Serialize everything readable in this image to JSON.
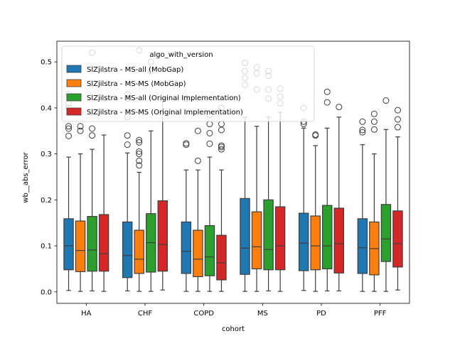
{
  "chart_data": {
    "type": "box",
    "xlabel": "cohort",
    "ylabel": "wb__abs_error",
    "ylim": [
      -0.025,
      0.545
    ],
    "yticks": [
      0.0,
      0.1,
      0.2,
      0.3,
      0.4,
      0.5
    ],
    "ytick_labels": [
      "0.0",
      "0.1",
      "0.2",
      "0.3",
      "0.4",
      "0.5"
    ],
    "categories": [
      "HA",
      "CHF",
      "COPD",
      "MS",
      "PD",
      "PFF"
    ],
    "legend": {
      "title": "algo_with_version",
      "position": "upper-left"
    },
    "grid": false,
    "series": [
      {
        "name": "SlZjilstra - MS-all (MobGap)",
        "color": "#1f77b4",
        "boxes": [
          {
            "whisker_low": 0.003,
            "q1": 0.048,
            "median": 0.1,
            "q3": 0.159,
            "whisker_high": 0.293,
            "outliers": [
              0.339,
              0.355,
              0.36,
              0.4,
              0.41,
              0.43
            ]
          },
          {
            "whisker_low": 0.002,
            "q1": 0.031,
            "median": 0.079,
            "q3": 0.152,
            "whisker_high": 0.302,
            "outliers": [
              0.32,
              0.34,
              0.38,
              0.42,
              0.43
            ]
          },
          {
            "whisker_low": 0.001,
            "q1": 0.04,
            "median": 0.088,
            "q3": 0.152,
            "whisker_high": 0.265,
            "outliers": [
              0.32,
              0.323,
              0.42
            ]
          },
          {
            "whisker_low": 0.001,
            "q1": 0.038,
            "median": 0.095,
            "q3": 0.203,
            "whisker_high": 0.38,
            "outliers": [
              0.45,
              0.465,
              0.48,
              0.498
            ]
          },
          {
            "whisker_low": 0.003,
            "q1": 0.046,
            "median": 0.106,
            "q3": 0.171,
            "whisker_high": 0.356,
            "outliers": [
              0.365,
              0.37,
              0.4
            ]
          },
          {
            "whisker_low": 0.001,
            "q1": 0.04,
            "median": 0.096,
            "q3": 0.159,
            "whisker_high": 0.32,
            "outliers": [
              0.347,
              0.352,
              0.37
            ]
          }
        ]
      },
      {
        "name": "SlZjilstra - MS-MS (MobGap)",
        "color": "#ff7f0e",
        "boxes": [
          {
            "whisker_low": 0.001,
            "q1": 0.044,
            "median": 0.09,
            "q3": 0.154,
            "whisker_high": 0.3,
            "outliers": [
              0.35,
              0.36,
              0.39
            ]
          },
          {
            "whisker_low": 0.001,
            "q1": 0.04,
            "median": 0.071,
            "q3": 0.134,
            "whisker_high": 0.26,
            "outliers": [
              0.275,
              0.285,
              0.3,
              0.305,
              0.325,
              0.33,
              0.525
            ]
          },
          {
            "whisker_low": 0.001,
            "q1": 0.033,
            "median": 0.071,
            "q3": 0.134,
            "whisker_high": 0.265,
            "outliers": [
              0.285,
              0.35
            ]
          },
          {
            "whisker_low": 0.001,
            "q1": 0.05,
            "median": 0.098,
            "q3": 0.174,
            "whisker_high": 0.36,
            "outliers": [
              0.44,
              0.475,
              0.488
            ]
          },
          {
            "whisker_low": 0.001,
            "q1": 0.048,
            "median": 0.1,
            "q3": 0.165,
            "whisker_high": 0.318,
            "outliers": [
              0.34,
              0.342
            ]
          },
          {
            "whisker_low": 0.001,
            "q1": 0.037,
            "median": 0.094,
            "q3": 0.152,
            "whisker_high": 0.3,
            "outliers": [
              0.353,
              0.37,
              0.387
            ]
          }
        ]
      },
      {
        "name": "SlZjilstra - MS-all (Original Implementation)",
        "color": "#2ca02c",
        "boxes": [
          {
            "whisker_low": 0.002,
            "q1": 0.045,
            "median": 0.091,
            "q3": 0.164,
            "whisker_high": 0.31,
            "outliers": [
              0.34,
              0.355,
              0.52
            ]
          },
          {
            "whisker_low": 0.001,
            "q1": 0.043,
            "median": 0.107,
            "q3": 0.17,
            "whisker_high": 0.35,
            "outliers": [
              0.48,
              0.5
            ]
          },
          {
            "whisker_low": 0.001,
            "q1": 0.035,
            "median": 0.076,
            "q3": 0.144,
            "whisker_high": 0.293,
            "outliers": [
              0.322,
              0.345,
              0.365,
              0.385
            ]
          },
          {
            "whisker_low": 0.002,
            "q1": 0.048,
            "median": 0.092,
            "q3": 0.2,
            "whisker_high": 0.38,
            "outliers": [
              0.42,
              0.44,
              0.47,
              0.48
            ]
          },
          {
            "whisker_low": 0.002,
            "q1": 0.05,
            "median": 0.1,
            "q3": 0.188,
            "whisker_high": 0.356,
            "outliers": [
              0.412,
              0.435
            ]
          },
          {
            "whisker_low": 0.001,
            "q1": 0.066,
            "median": 0.115,
            "q3": 0.19,
            "whisker_high": 0.353,
            "outliers": [
              0.416
            ]
          }
        ]
      },
      {
        "name": "SlZjilstra - MS-MS (Original Implementation)",
        "color": "#d62728",
        "boxes": [
          {
            "whisker_low": 0.001,
            "q1": 0.045,
            "median": 0.083,
            "q3": 0.168,
            "whisker_high": 0.341,
            "outliers": []
          },
          {
            "whisker_low": 0.004,
            "q1": 0.045,
            "median": 0.103,
            "q3": 0.198,
            "whisker_high": 0.42,
            "outliers": []
          },
          {
            "whisker_low": 0.001,
            "q1": 0.026,
            "median": 0.063,
            "q3": 0.123,
            "whisker_high": 0.265,
            "outliers": [
              0.31,
              0.315,
              0.318,
              0.352,
              0.365,
              0.4
            ]
          },
          {
            "whisker_low": 0.001,
            "q1": 0.048,
            "median": 0.1,
            "q3": 0.185,
            "whisker_high": 0.39,
            "outliers": [
              0.41,
              0.425,
              0.442
            ]
          },
          {
            "whisker_low": 0.002,
            "q1": 0.041,
            "median": 0.105,
            "q3": 0.182,
            "whisker_high": 0.38,
            "outliers": [
              0.402
            ]
          },
          {
            "whisker_low": 0.004,
            "q1": 0.054,
            "median": 0.105,
            "q3": 0.176,
            "whisker_high": 0.337,
            "outliers": [
              0.358,
              0.375,
              0.395
            ]
          }
        ]
      }
    ]
  }
}
